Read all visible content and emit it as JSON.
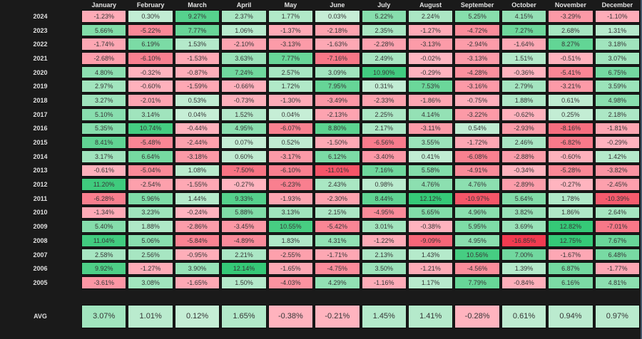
{
  "chart_data": {
    "type": "heatmap",
    "columns": [
      "January",
      "February",
      "March",
      "April",
      "May",
      "June",
      "July",
      "August",
      "September",
      "October",
      "November",
      "December"
    ],
    "rows": [
      {
        "year": "2024",
        "values": [
          -1.23,
          0.3,
          9.27,
          2.37,
          1.77,
          0.03,
          5.22,
          2.24,
          5.25,
          4.15,
          -3.29,
          -1.1
        ]
      },
      {
        "year": "2023",
        "values": [
          5.66,
          -5.22,
          7.77,
          1.06,
          -1.37,
          -2.18,
          2.35,
          -1.27,
          -4.72,
          7.27,
          2.68,
          1.31
        ]
      },
      {
        "year": "2022",
        "values": [
          -1.74,
          6.19,
          1.53,
          -2.1,
          -3.13,
          -1.63,
          -2.28,
          -3.13,
          -2.94,
          -1.64,
          8.27,
          3.18
        ]
      },
      {
        "year": "2021",
        "values": [
          -2.68,
          -6.1,
          -1.53,
          3.63,
          7.77,
          -7.16,
          2.49,
          -0.02,
          -3.13,
          1.51,
          -0.51,
          3.07
        ]
      },
      {
        "year": "2020",
        "values": [
          4.8,
          -0.32,
          -0.87,
          7.24,
          2.57,
          3.09,
          10.9,
          -0.29,
          -4.28,
          -0.36,
          -5.41,
          6.75
        ]
      },
      {
        "year": "2019",
        "values": [
          2.97,
          -0.6,
          -1.59,
          -0.66,
          1.72,
          7.95,
          0.31,
          7.53,
          -3.16,
          2.79,
          -3.21,
          3.59
        ]
      },
      {
        "year": "2018",
        "values": [
          3.27,
          -2.01,
          0.53,
          -0.73,
          -1.3,
          -3.49,
          -2.33,
          -1.86,
          -0.75,
          1.88,
          0.61,
          4.98
        ]
      },
      {
        "year": "2017",
        "values": [
          5.1,
          3.14,
          0.04,
          1.52,
          0.04,
          -2.13,
          2.25,
          4.14,
          -3.22,
          -0.62,
          0.25,
          2.18
        ]
      },
      {
        "year": "2016",
        "values": [
          5.35,
          10.74,
          -0.44,
          4.95,
          -6.07,
          8.8,
          2.17,
          -3.11,
          0.54,
          -2.93,
          -8.16,
          -1.81
        ]
      },
      {
        "year": "2015",
        "values": [
          8.41,
          -5.48,
          -2.44,
          0.07,
          0.52,
          -1.5,
          -6.56,
          3.55,
          -1.72,
          2.46,
          -6.82,
          -0.29
        ]
      },
      {
        "year": "2014",
        "values": [
          3.17,
          6.64,
          -3.18,
          0.6,
          -3.17,
          6.12,
          -3.4,
          0.41,
          -6.08,
          -2.88,
          -0.6,
          1.42
        ]
      },
      {
        "year": "2013",
        "values": [
          -0.61,
          -5.04,
          1.08,
          -7.5,
          -6.1,
          -11.01,
          7.16,
          5.58,
          -4.91,
          -0.34,
          -5.28,
          -3.82
        ]
      },
      {
        "year": "2012",
        "values": [
          11.2,
          -2.54,
          -1.55,
          -0.27,
          -6.23,
          2.43,
          0.98,
          4.76,
          4.76,
          -2.89,
          -0.27,
          -2.45
        ]
      },
      {
        "year": "2011",
        "values": [
          -6.28,
          5.96,
          1.44,
          9.33,
          -1.93,
          -2.3,
          8.44,
          12.12,
          -10.97,
          5.64,
          1.78,
          -10.39
        ]
      },
      {
        "year": "2010",
        "values": [
          -1.34,
          3.23,
          -0.24,
          5.88,
          3.13,
          2.15,
          -4.95,
          5.65,
          4.96,
          3.82,
          1.86,
          2.64
        ]
      },
      {
        "year": "2009",
        "values": [
          5.4,
          1.88,
          -2.86,
          -3.45,
          10.55,
          -5.42,
          3.01,
          -0.38,
          5.95,
          3.69,
          12.82,
          -7.01
        ]
      },
      {
        "year": "2008",
        "values": [
          11.04,
          5.06,
          -5.84,
          -4.89,
          1.83,
          4.31,
          -1.22,
          -9.09,
          4.95,
          -16.85,
          12.75,
          7.67
        ]
      },
      {
        "year": "2007",
        "values": [
          2.58,
          2.56,
          -0.95,
          2.21,
          -2.55,
          -1.71,
          2.13,
          1.43,
          10.56,
          7.0,
          -1.67,
          6.48
        ]
      },
      {
        "year": "2006",
        "values": [
          9.92,
          -1.27,
          3.9,
          12.14,
          -1.65,
          -4.75,
          3.5,
          -1.21,
          -4.56,
          1.39,
          6.87,
          -1.77
        ]
      },
      {
        "year": "2005",
        "values": [
          -3.61,
          3.08,
          -1.65,
          1.5,
          -4.03,
          4.29,
          -1.16,
          1.17,
          7.79,
          -0.84,
          6.16,
          4.81
        ]
      }
    ],
    "avg_row": {
      "label": "AVG",
      "values": [
        3.07,
        1.01,
        0.12,
        1.65,
        -0.38,
        -0.21,
        1.45,
        1.41,
        -0.28,
        0.61,
        0.94,
        0.97
      ]
    },
    "value_suffix": "%",
    "value_decimals": 2,
    "legend_position": "none",
    "grid": "dark-cell-borders",
    "color_scale": {
      "positive_low": "#C6EED6",
      "positive_high": "#35C977",
      "positive_cap": 12,
      "negative_low": "#FFB6C1",
      "negative_high": "#F23B50",
      "negative_cap": 14
    }
  }
}
